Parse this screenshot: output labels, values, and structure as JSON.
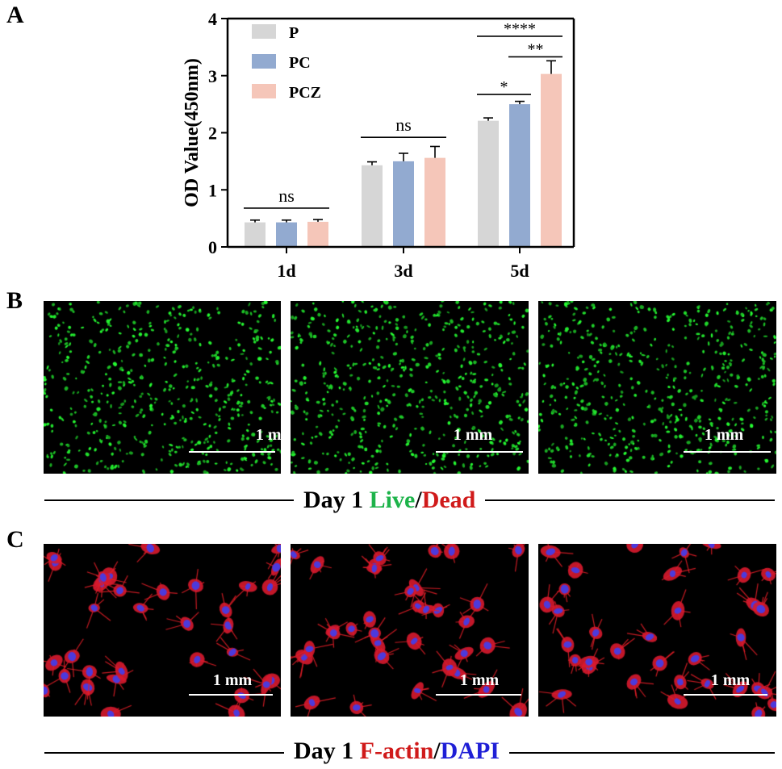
{
  "panels": {
    "a_label": "A",
    "b_label": "B",
    "c_label": "C"
  },
  "chart_data": {
    "type": "bar",
    "ylabel": "OD Value(450nm)",
    "categories": [
      "1d",
      "3d",
      "5d"
    ],
    "ylim": [
      0,
      4
    ],
    "yticks": [
      "0",
      "1",
      "2",
      "3",
      "4"
    ],
    "legend_position": "top-left",
    "series": [
      {
        "name": "P",
        "color": "#d6d6d6",
        "values": [
          0.43,
          1.43,
          2.21
        ],
        "errors": [
          0.04,
          0.06,
          0.05
        ]
      },
      {
        "name": "PC",
        "color": "#92aad0",
        "values": [
          0.43,
          1.5,
          2.5
        ],
        "errors": [
          0.04,
          0.14,
          0.05
        ]
      },
      {
        "name": "PCZ",
        "color": "#f5c6b9",
        "values": [
          0.44,
          1.56,
          3.03
        ],
        "errors": [
          0.04,
          0.2,
          0.23
        ]
      }
    ],
    "annotations": [
      {
        "text": "ns",
        "group": 0,
        "from": 0,
        "to": 2,
        "y": 0.68
      },
      {
        "text": "ns",
        "group": 1,
        "from": 0,
        "to": 2,
        "y": 1.92
      },
      {
        "text": "*",
        "group": 2,
        "from": 0,
        "to": 1,
        "y": 2.67
      },
      {
        "text": "**",
        "group": 2,
        "from": 1,
        "to": 2,
        "y": 3.33
      },
      {
        "text": "****",
        "group": 2,
        "from": 0,
        "to": 2,
        "y": 3.69
      }
    ]
  },
  "live_dead": {
    "scale_label": "1 mm",
    "caption_prefix": "Day 1 ",
    "caption_live": "Live",
    "caption_slash": "/",
    "caption_dead": "Dead",
    "live_color": "#1db34a",
    "dead_color": "#d01a1a"
  },
  "factin_dapi": {
    "scale_label": "1 mm",
    "caption_prefix": "Day 1 ",
    "caption_factin": "F-actin",
    "caption_slash": "/",
    "caption_dapi": "DAPI",
    "factin_color": "#d01a1a",
    "dapi_color": "#1f1fd6"
  }
}
